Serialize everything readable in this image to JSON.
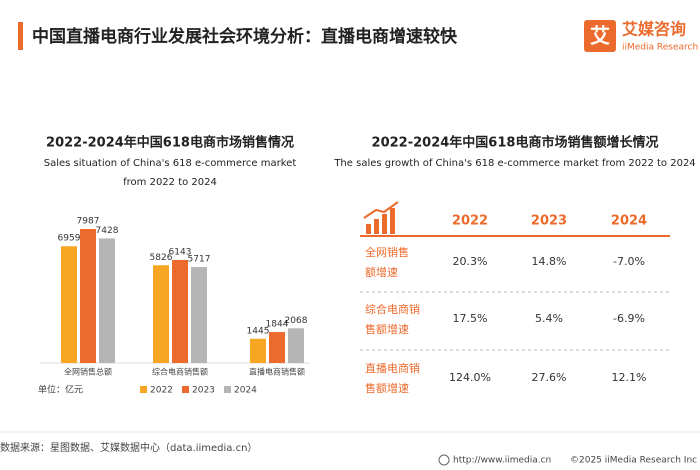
{
  "header": {
    "title": "中国直播电商行业发展社会环境分析：直播电商增速较快",
    "logo": {
      "mark": "艾",
      "name": "艾媒咨询",
      "sub": "iiMedia Research"
    }
  },
  "chart_data": {
    "type": "bar",
    "title": "2022-2024年中国618电商市场销售情况",
    "subtitle": [
      "Sales situation of China's 618 e-commerce market",
      "from 2022 to 2024"
    ],
    "categories": [
      "全网销售总额",
      "综合电商销售额",
      "直播电商销售额"
    ],
    "series": [
      {
        "name": "2022",
        "color": "#f6a623",
        "values": [
          6959,
          5826,
          1445
        ]
      },
      {
        "name": "2023",
        "color": "#ec6a2c",
        "values": [
          7987,
          6143,
          1844
        ]
      },
      {
        "name": "2024",
        "color": "#b5b5b5",
        "values": [
          7428,
          5717,
          2068
        ]
      }
    ],
    "unit": "单位：亿元"
  },
  "table": {
    "title": "2022-2024年中国618电商市场销售额增长情况",
    "subtitle": "The sales growth of China's 618 e-commerce market from 2022 to 2024",
    "columns": [
      "2022",
      "2023",
      "2024"
    ],
    "rows": [
      {
        "label": [
          "全网销售",
          "额增速"
        ],
        "cells": [
          "20.3%",
          "14.8%",
          "-7.0%"
        ]
      },
      {
        "label": [
          "综合电商销",
          "售额增速"
        ],
        "cells": [
          "17.5%",
          "5.4%",
          "-6.9%"
        ]
      },
      {
        "label": [
          "直播电商销",
          "售额增速"
        ],
        "cells": [
          "124.0%",
          "27.6%",
          "12.1%"
        ]
      }
    ]
  },
  "footer": {
    "source": "数据来源：星图数据、艾媒数据中心（data.iimedia.cn）",
    "url": "http://www.iimedia.cn",
    "copyright": "©2025 iiMedia Research Inc"
  }
}
